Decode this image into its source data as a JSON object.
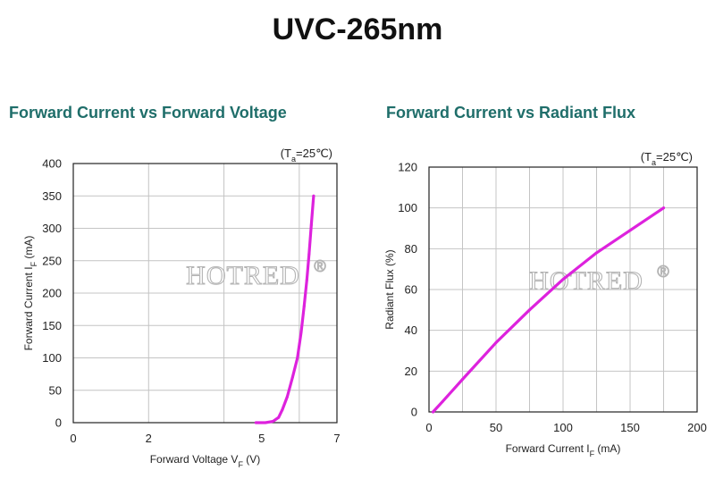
{
  "page_title": "UVC-265nm",
  "watermark": {
    "text": "HOTRED",
    "mark": "®"
  },
  "chart_data": [
    {
      "type": "line",
      "title": "Forward Current vs Forward Voltage",
      "condition": {
        "prefix": "(T",
        "sub": "a",
        "suffix": "=25℃)"
      },
      "xlabel": {
        "prefix": "Forward Voltage V",
        "sub": "F",
        "suffix": " (V)"
      },
      "ylabel": {
        "prefix": "Forward Current I",
        "sub": "F",
        "suffix": " (mA)"
      },
      "xlim": [
        0,
        7
      ],
      "ylim": [
        0,
        400
      ],
      "xticks": [
        0,
        2,
        5,
        7
      ],
      "xgrid": [
        0,
        2,
        4,
        6,
        7
      ],
      "yticks": [
        0,
        50,
        100,
        150,
        200,
        250,
        300,
        350,
        400
      ],
      "grid": true,
      "line_color": "#dd22dd",
      "series": [
        {
          "x": [
            4.85,
            5.1,
            5.3,
            5.45,
            5.55,
            5.68,
            5.82,
            5.95,
            6.05,
            6.13,
            6.2,
            6.26,
            6.32,
            6.38
          ],
          "y": [
            0,
            0,
            2,
            8,
            20,
            40,
            70,
            100,
            140,
            180,
            220,
            260,
            305,
            350
          ]
        }
      ]
    },
    {
      "type": "line",
      "title": "Forward Current vs Radiant Flux",
      "condition": {
        "prefix": "(T",
        "sub": "a",
        "suffix": "=25℃)"
      },
      "xlabel": {
        "prefix": "Forward Current I",
        "sub": "F",
        "suffix": " (mA)"
      },
      "ylabel": {
        "prefix": "Radiant Flux (%)",
        "sub": "",
        "suffix": ""
      },
      "xlim": [
        0,
        200
      ],
      "ylim": [
        0,
        120
      ],
      "xticks": [
        0,
        50,
        100,
        150,
        200
      ],
      "xgrid": [
        0,
        25,
        50,
        75,
        100,
        125,
        150,
        175,
        200
      ],
      "yticks": [
        0,
        20,
        40,
        60,
        80,
        100,
        120
      ],
      "grid": true,
      "line_color": "#dd22dd",
      "series": [
        {
          "x": [
            3,
            10,
            25,
            50,
            75,
            100,
            125,
            150,
            175
          ],
          "y": [
            0,
            5,
            16,
            34,
            50,
            65,
            78,
            89,
            100
          ]
        }
      ]
    }
  ]
}
